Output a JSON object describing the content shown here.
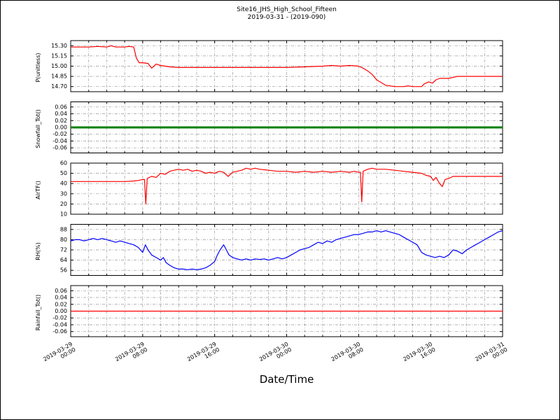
{
  "title": {
    "line1": "Site16_JHS_High_School_Fifteen",
    "line2": "2019-03-31 - (2019-090)"
  },
  "x_axis": {
    "label": "Date/Time",
    "hours_span": 48,
    "major_tick_hours": 8,
    "grid_hours": 2,
    "tick_labels": [
      [
        "2019-03-29",
        "00:00"
      ],
      [
        "2019-03-29",
        "08:00"
      ],
      [
        "2019-03-29",
        "16:00"
      ],
      [
        "2019-03-30",
        "00:00"
      ],
      [
        "2019-03-30",
        "08:00"
      ],
      [
        "2019-03-30",
        "16:00"
      ],
      [
        "2019-03-31",
        "00:00"
      ]
    ]
  },
  "chart_data": [
    {
      "type": "line",
      "ylabel": "P(unitless)",
      "color": "#ff0000",
      "line_width": 1.2,
      "ylim": [
        14.625,
        15.375
      ],
      "ytick_values": [
        14.7,
        14.85,
        15.0,
        15.15,
        15.3
      ],
      "ytick_labels": [
        "14.70",
        "14.85",
        "15.00",
        "15.15",
        "15.30"
      ],
      "x": [
        0,
        1,
        2,
        3,
        4,
        4.5,
        5,
        6,
        6.5,
        7,
        7.3,
        7.6,
        8,
        8.6,
        9,
        9.5,
        10,
        10.5,
        11,
        12,
        14,
        16,
        18,
        20,
        22,
        24,
        26,
        28,
        29,
        30,
        31,
        32,
        32.5,
        33,
        33.5,
        34,
        34.5,
        35,
        35.5,
        36,
        36.5,
        37,
        37.5,
        38,
        38.5,
        39,
        39.3,
        39.8,
        40.2,
        40.6,
        41,
        42,
        43,
        44,
        45,
        46,
        47,
        48
      ],
      "values": [
        15.28,
        15.28,
        15.28,
        15.29,
        15.28,
        15.3,
        15.28,
        15.28,
        15.29,
        15.28,
        15.12,
        15.05,
        15.05,
        15.04,
        14.97,
        15.03,
        15.01,
        15.0,
        14.99,
        14.98,
        14.98,
        14.98,
        14.98,
        14.98,
        14.98,
        14.98,
        14.99,
        15.0,
        15.01,
        15.0,
        15.01,
        15.0,
        14.97,
        14.93,
        14.88,
        14.8,
        14.76,
        14.72,
        14.71,
        14.7,
        14.7,
        14.7,
        14.71,
        14.7,
        14.7,
        14.7,
        14.74,
        14.77,
        14.75,
        14.8,
        14.82,
        14.82,
        14.85,
        14.85,
        14.85,
        14.85,
        14.85,
        14.85
      ]
    },
    {
      "type": "line",
      "ylabel": "Snowfall_Tot()",
      "color": "#008000",
      "line_width": 3,
      "ylim": [
        -0.075,
        0.075
      ],
      "ytick_values": [
        -0.06,
        -0.04,
        -0.02,
        0.0,
        0.02,
        0.04,
        0.06
      ],
      "ytick_labels": [
        "-0.06",
        "-0.04",
        "-0.02",
        "0.00",
        "0.02",
        "0.04",
        "0.06"
      ],
      "x": [
        0,
        48
      ],
      "values": [
        0,
        0
      ]
    },
    {
      "type": "line",
      "ylabel": "AirTF()",
      "color": "#ff0000",
      "line_width": 1.2,
      "ylim": [
        10,
        60
      ],
      "ytick_values": [
        10,
        20,
        30,
        40,
        50,
        60
      ],
      "ytick_labels": [
        "10",
        "20",
        "30",
        "40",
        "50",
        "60"
      ],
      "x": [
        0,
        2,
        4,
        6,
        7,
        7.5,
        8,
        8.2,
        8.35,
        8.5,
        9,
        9.5,
        10,
        10.5,
        11,
        11.5,
        12,
        12.5,
        13,
        13.5,
        14,
        14.5,
        15,
        15.5,
        16,
        16.5,
        17,
        17.5,
        18,
        18.5,
        19,
        19.5,
        20,
        20.5,
        21,
        22,
        23,
        24,
        25,
        26,
        27,
        28,
        29,
        30,
        31,
        31.5,
        32,
        32.2,
        32.35,
        32.5,
        33,
        33.5,
        34,
        35,
        36,
        37,
        38,
        39,
        39.5,
        40,
        40.3,
        40.6,
        41,
        41.3,
        41.6,
        42,
        42.5,
        43,
        44,
        45,
        46,
        47,
        48
      ],
      "values": [
        42,
        42,
        42,
        42,
        42.5,
        43,
        44,
        44,
        20,
        45,
        47,
        46,
        50,
        49,
        52,
        53,
        54,
        53,
        54,
        52,
        53,
        52,
        50,
        51,
        50,
        52,
        51,
        47,
        51,
        52,
        53,
        55,
        54,
        55,
        54,
        53,
        52,
        52,
        51,
        52,
        51,
        52,
        51,
        52,
        51,
        52,
        51,
        51,
        22,
        52,
        54,
        55,
        54,
        54,
        53,
        52,
        51,
        50,
        48,
        47,
        43,
        46,
        40,
        37,
        44,
        45,
        47,
        47,
        47,
        47,
        47,
        47,
        47
      ]
    },
    {
      "type": "line",
      "ylabel": "RH(%)",
      "color": "#0000ff",
      "line_width": 1.2,
      "ylim": [
        52,
        92
      ],
      "ytick_values": [
        56,
        64,
        72,
        80,
        88
      ],
      "ytick_labels": [
        "56",
        "64",
        "72",
        "80",
        "88"
      ],
      "x": [
        0,
        0.5,
        1,
        1.5,
        2,
        2.5,
        3,
        3.5,
        4,
        4.5,
        5,
        5.5,
        6,
        6.5,
        7,
        7.5,
        8,
        8.3,
        8.6,
        9,
        9.5,
        10,
        10.3,
        10.6,
        11,
        11.5,
        12,
        12.5,
        13,
        13.5,
        14,
        14.5,
        15,
        15.5,
        16,
        16.3,
        16.6,
        17,
        17.3,
        17.6,
        18,
        18.5,
        19,
        19.5,
        20,
        20.5,
        21,
        21.5,
        22,
        22.5,
        23,
        23.5,
        24,
        24.5,
        25,
        25.5,
        26,
        26.5,
        27,
        27.5,
        28,
        28.5,
        29,
        29.5,
        30,
        30.5,
        31,
        31.5,
        32,
        32.5,
        33,
        33.5,
        34,
        34.5,
        35,
        35.5,
        36,
        36.5,
        37,
        37.5,
        38,
        38.5,
        39,
        39.5,
        40,
        40.5,
        41,
        41.5,
        42,
        42.5,
        43,
        43.5,
        44,
        44.5,
        45,
        45.5,
        46,
        46.5,
        47,
        47.5,
        48
      ],
      "values": [
        79,
        80,
        80,
        79,
        80,
        81,
        80,
        81,
        80,
        79,
        78,
        79,
        78,
        77,
        76,
        74,
        70,
        76,
        72,
        68,
        66,
        64,
        66,
        62,
        60,
        58,
        57,
        57,
        56.5,
        57,
        56.5,
        57,
        58,
        60,
        63,
        68,
        72,
        76,
        72,
        68,
        66,
        65,
        64,
        65,
        64,
        65,
        64.5,
        65,
        64,
        65,
        66,
        65,
        66,
        68,
        70,
        72,
        73,
        74,
        76,
        78,
        77,
        79,
        78,
        80,
        81,
        82,
        83,
        84,
        84,
        85,
        86,
        86,
        87,
        86,
        87,
        86,
        85,
        84,
        82,
        80,
        78,
        76,
        70,
        68,
        67,
        66,
        67,
        66,
        68,
        72,
        71,
        69,
        72,
        74,
        76,
        78,
        80,
        82,
        84,
        86,
        87
      ]
    },
    {
      "type": "line",
      "ylabel": "Rainfall_Tot()",
      "color": "#ff0000",
      "line_width": 1.2,
      "ylim": [
        -0.075,
        0.075
      ],
      "ytick_values": [
        -0.06,
        -0.04,
        -0.02,
        0.0,
        0.02,
        0.04,
        0.06
      ],
      "ytick_labels": [
        "-0.06",
        "-0.04",
        "-0.02",
        "0.00",
        "0.02",
        "0.04",
        "0.06"
      ],
      "x": [
        0,
        48
      ],
      "values": [
        0,
        0
      ]
    }
  ]
}
